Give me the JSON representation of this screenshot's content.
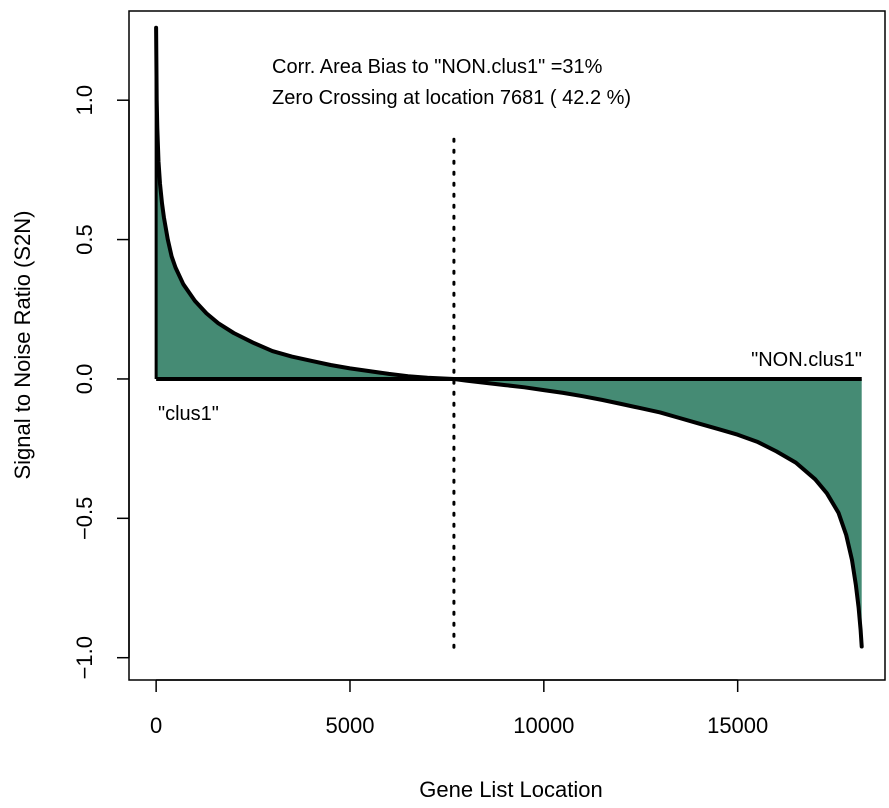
{
  "chart_data": {
    "type": "area",
    "title": "",
    "xlabel": "Gene List Location",
    "ylabel": "Signal to Noise Ratio (S2N)",
    "xlim": [
      -700,
      18800
    ],
    "ylim": [
      -1.08,
      1.32
    ],
    "x_ticks": [
      0,
      5000,
      10000,
      15000
    ],
    "x_tick_labels": [
      "0",
      "5000",
      "10000",
      "15000"
    ],
    "y_ticks": [
      -1.0,
      -0.5,
      0.0,
      0.5,
      1.0
    ],
    "y_tick_labels": [
      "−1.0",
      "−0.5",
      "0.0",
      "0.5",
      "1.0"
    ],
    "grid": false,
    "fill_color": "#458B74",
    "line_color": "#000000",
    "zero_crossing_x": 7681,
    "series": [
      {
        "values_x": [
          0,
          15,
          30,
          60,
          100,
          150,
          200,
          300,
          400,
          500,
          700,
          1000,
          1300,
          1600,
          2000,
          2500,
          3000,
          3500,
          4000,
          4500,
          5000,
          5500,
          6000,
          6500,
          7000,
          7681,
          8000,
          8500,
          9000,
          9500,
          10000,
          10500,
          11000,
          11500,
          12000,
          12500,
          13000,
          13500,
          14000,
          14500,
          15000,
          15500,
          16000,
          16500,
          17000,
          17300,
          17600,
          17800,
          17950,
          18050,
          18120,
          18170,
          18200
        ],
        "values_y": [
          1.26,
          1.0,
          0.9,
          0.78,
          0.7,
          0.63,
          0.58,
          0.5,
          0.44,
          0.4,
          0.34,
          0.28,
          0.235,
          0.2,
          0.165,
          0.13,
          0.1,
          0.08,
          0.065,
          0.05,
          0.038,
          0.028,
          0.018,
          0.01,
          0.004,
          0.0,
          -0.006,
          -0.014,
          -0.022,
          -0.03,
          -0.04,
          -0.05,
          -0.062,
          -0.075,
          -0.09,
          -0.105,
          -0.12,
          -0.14,
          -0.16,
          -0.18,
          -0.2,
          -0.225,
          -0.26,
          -0.3,
          -0.36,
          -0.41,
          -0.48,
          -0.56,
          -0.65,
          -0.74,
          -0.82,
          -0.9,
          -0.96
        ]
      }
    ],
    "annotations": {
      "line1": "Corr. Area Bias to \"NON.clus1\" =31%",
      "line2": "Zero Crossing at location  7681  ( 42.2  %)",
      "left_label": "\"clus1\"",
      "right_label": "\"NON.clus1\""
    }
  }
}
